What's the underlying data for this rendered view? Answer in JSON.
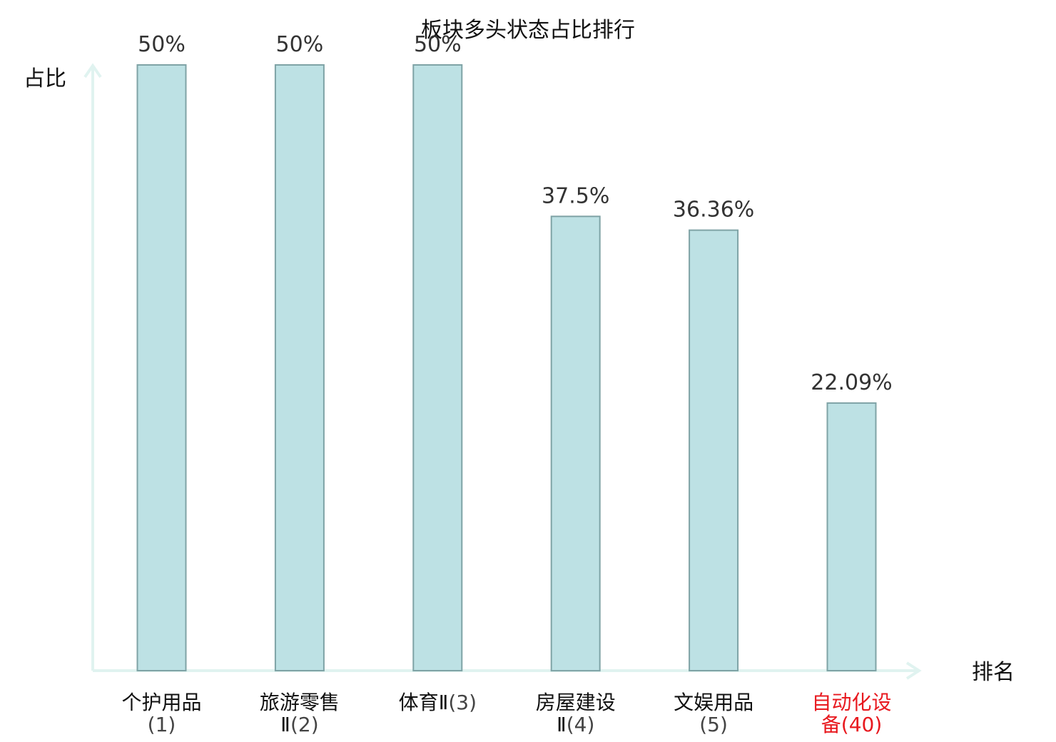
{
  "chart_data": {
    "type": "bar",
    "title": "板块多头状态占比排行",
    "xlabel": "排名",
    "ylabel": "占比",
    "ylim": [
      0,
      50
    ],
    "grid": false,
    "categories": [
      {
        "name": "个护用品",
        "rank": "(1)",
        "highlight": false
      },
      {
        "name": "旅游零售Ⅱ",
        "rank": "(2)",
        "highlight": false
      },
      {
        "name": "体育Ⅱ",
        "rank": "(3)",
        "highlight": false
      },
      {
        "name": "房屋建设Ⅱ",
        "rank": "(4)",
        "highlight": false
      },
      {
        "name": "文娱用品",
        "rank": "(5)",
        "highlight": false
      },
      {
        "name": "自动化设备",
        "rank": "(40)",
        "highlight": true
      }
    ],
    "values": [
      50,
      50,
      50,
      37.5,
      36.36,
      22.09
    ],
    "data_labels": [
      "50%",
      "50%",
      "50%",
      "37.5%",
      "36.36%",
      "22.09%"
    ],
    "colors": {
      "bar_fill": "#bde1e4",
      "bar_stroke": "#7fa3a6",
      "axis": "#e0f3f0",
      "highlight": "#e8191f",
      "text": "#111111",
      "rank_text": "#444444",
      "data_label": "#333333"
    }
  }
}
